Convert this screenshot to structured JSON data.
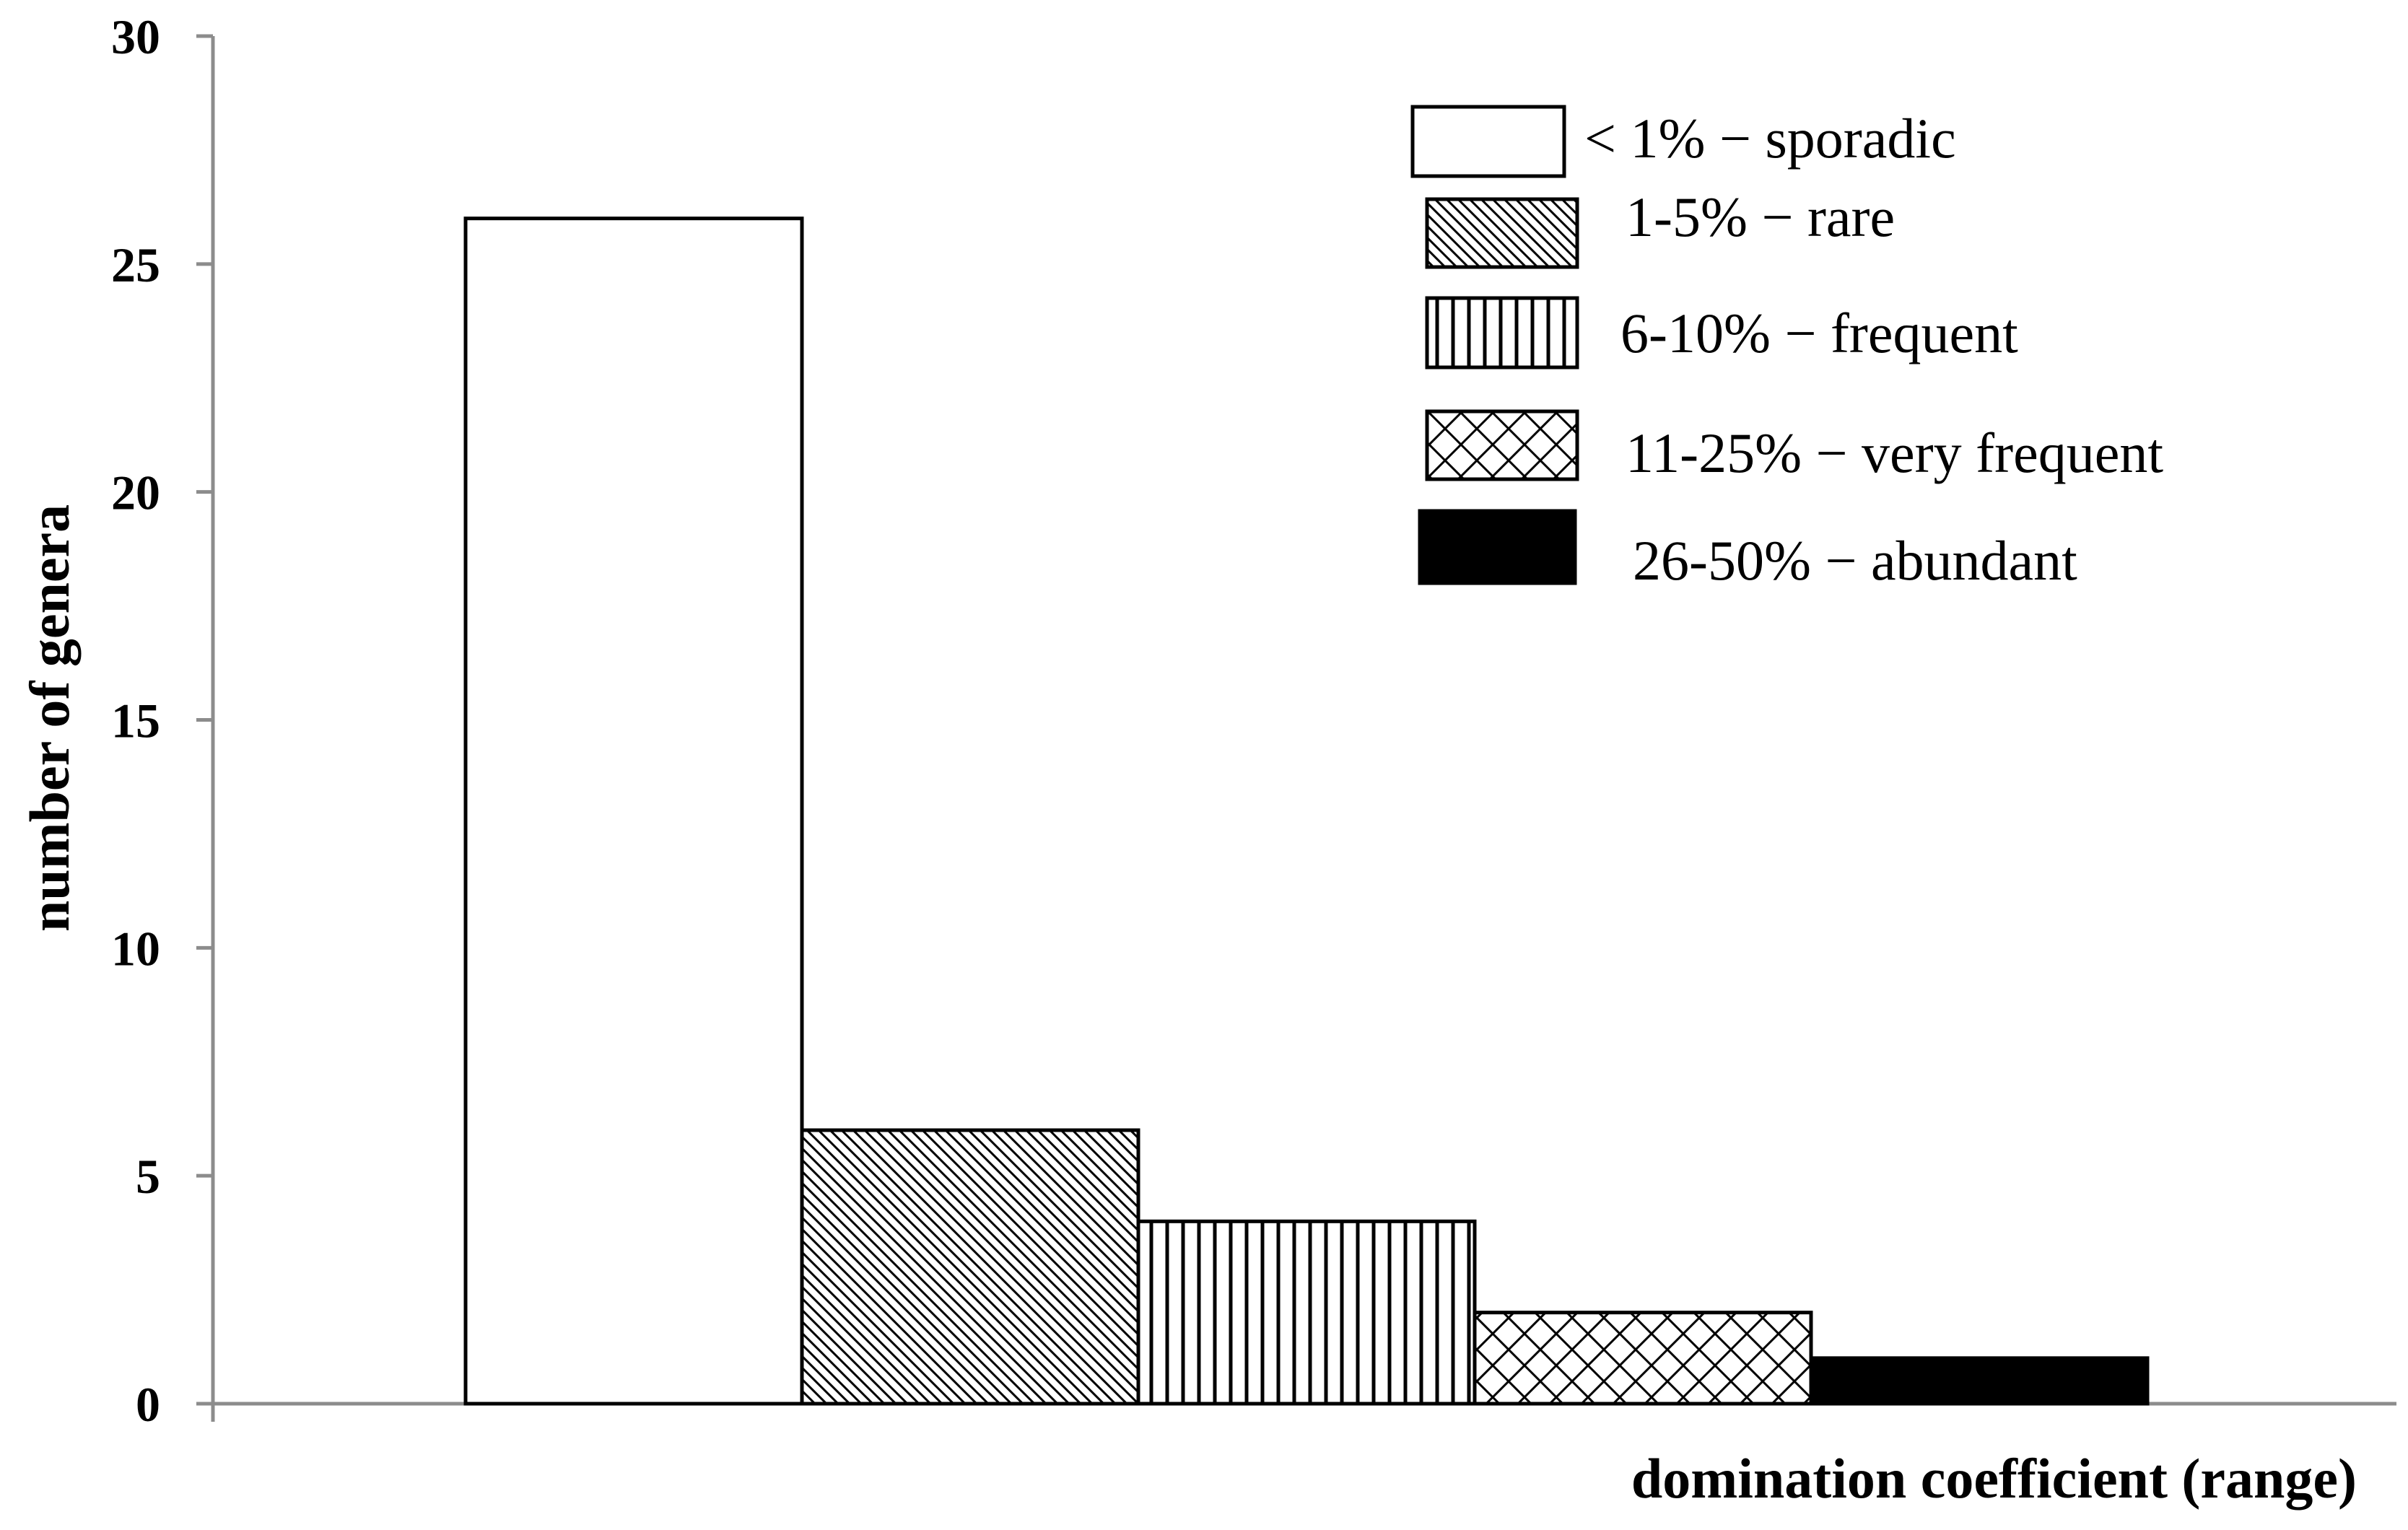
{
  "chart_data": {
    "type": "bar",
    "title": "",
    "xlabel": "domination coefficient (range)",
    "ylabel": "number of genera",
    "ylim": [
      0,
      30
    ],
    "yticks": [
      0,
      5,
      10,
      15,
      20,
      25,
      30
    ],
    "grid": false,
    "legend_position": "top-right",
    "series": [
      {
        "name": "< 1% − sporadic",
        "value": 26,
        "pattern": "none"
      },
      {
        "name": "1-5% − rare",
        "value": 6,
        "pattern": "diagonal"
      },
      {
        "name": "6-10% − frequent",
        "value": 4,
        "pattern": "vertical"
      },
      {
        "name": "11-25% − very frequent",
        "value": 2,
        "pattern": "crosshatch"
      },
      {
        "name": "26-50% − abundant",
        "value": 1,
        "pattern": "solid"
      }
    ]
  }
}
